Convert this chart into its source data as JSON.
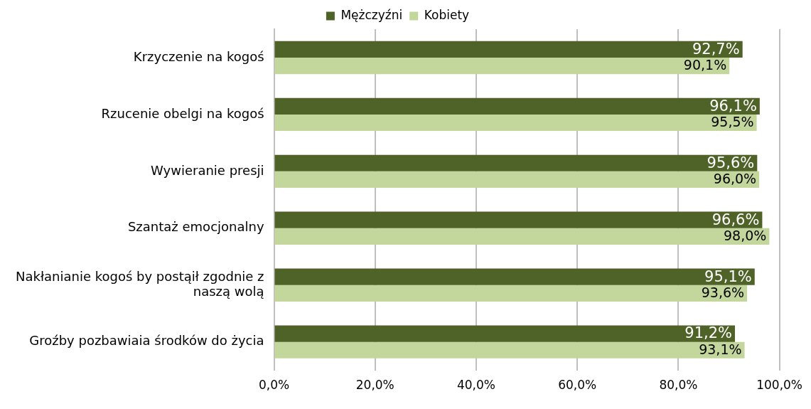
{
  "chart_data": {
    "type": "bar",
    "orientation": "horizontal",
    "categories": [
      "Krzyczenie na kogoś",
      "Rzucenie obelgi na kogoś",
      "Wywieranie presji",
      "Szantaż emocjonalny",
      "Nakłanianie kogoś by postąił zgodnie z naszą wolą",
      "Groźby pozbawiaia środków do życia"
    ],
    "series": [
      {
        "name": "Mężczyźni",
        "color": "#4f6228",
        "values": [
          92.7,
          96.1,
          95.6,
          96.6,
          95.1,
          91.2
        ],
        "value_labels": [
          "92,7%",
          "96,1%",
          "95,6%",
          "96,6%",
          "95,1%",
          "91,2%"
        ]
      },
      {
        "name": "Kobiety",
        "color": "#c3d69b",
        "values": [
          90.1,
          95.5,
          96.0,
          98.0,
          93.6,
          93.1
        ],
        "value_labels": [
          "90,1%",
          "95,5%",
          "96,0%",
          "98,0%",
          "93,6%",
          "93,1%"
        ]
      }
    ],
    "xlim": [
      0,
      100
    ],
    "xticks": [
      {
        "value": 0,
        "label": "0,0%"
      },
      {
        "value": 20,
        "label": "20,0%"
      },
      {
        "value": 40,
        "label": "40,0%"
      },
      {
        "value": 60,
        "label": "60,0%"
      },
      {
        "value": 80,
        "label": "80,0%"
      },
      {
        "value": 100,
        "label": "100,0%"
      }
    ],
    "grid": "x",
    "legend": "top"
  }
}
